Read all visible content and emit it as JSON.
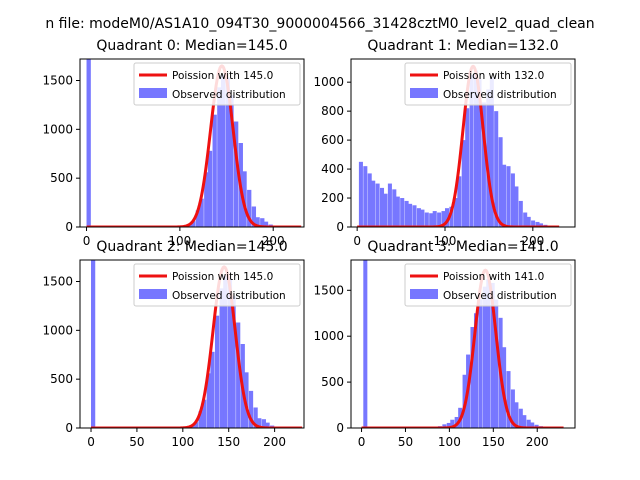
{
  "suptitle": "n file: modeM0/AS1A10_094T30_9000004566_31428cztM0_level2_quad_clean",
  "legend": {
    "observed_label": "Observed distribution",
    "poisson_color": "#ee1111",
    "hist_color": "#7777ff"
  },
  "chart_data": [
    {
      "type": "bar",
      "title": "Quadrant 0: Median=145.0",
      "poisson_label": "Poission with 145.0",
      "lambda": 145,
      "peak": 1650,
      "xlim": [
        -7,
        233
      ],
      "ylim": [
        0,
        1720
      ],
      "xticks": [
        0,
        100,
        200
      ],
      "yticks": [
        0,
        500,
        1000,
        1500
      ],
      "bin_width": 4.6,
      "bins": [
        [
          0,
          1720
        ],
        [
          103,
          10
        ],
        [
          108,
          25
        ],
        [
          112,
          60
        ],
        [
          117,
          170
        ],
        [
          121,
          290
        ],
        [
          126,
          560
        ],
        [
          130,
          780
        ],
        [
          135,
          1150
        ],
        [
          140,
          1430
        ],
        [
          144,
          1560
        ],
        [
          149,
          1530
        ],
        [
          153,
          1350
        ],
        [
          158,
          1080
        ],
        [
          163,
          860
        ],
        [
          167,
          570
        ],
        [
          172,
          380
        ],
        [
          177,
          210
        ],
        [
          181,
          100
        ],
        [
          186,
          90
        ],
        [
          190,
          55
        ],
        [
          195,
          25
        ],
        [
          200,
          12
        ],
        [
          204,
          8
        ],
        [
          209,
          5
        ]
      ]
    },
    {
      "type": "bar",
      "title": "Quadrant 1: Median=132.0",
      "poisson_label": "Poission with 132.0",
      "lambda": 132,
      "peak": 1110,
      "xlim": [
        -7,
        248
      ],
      "ylim": [
        0,
        1160
      ],
      "xticks": [
        0,
        100,
        200
      ],
      "yticks": [
        0,
        200,
        400,
        600,
        800,
        1000
      ],
      "bin_width": 4.6,
      "bins": [
        [
          2,
          450
        ],
        [
          7,
          420
        ],
        [
          12,
          370
        ],
        [
          16,
          320
        ],
        [
          21,
          300
        ],
        [
          26,
          270
        ],
        [
          30,
          230
        ],
        [
          35,
          300
        ],
        [
          40,
          260
        ],
        [
          44,
          210
        ],
        [
          49,
          200
        ],
        [
          54,
          180
        ],
        [
          58,
          160
        ],
        [
          63,
          150
        ],
        [
          68,
          130
        ],
        [
          72,
          120
        ],
        [
          77,
          100
        ],
        [
          82,
          95
        ],
        [
          86,
          110
        ],
        [
          91,
          100
        ],
        [
          96,
          110
        ],
        [
          100,
          130
        ],
        [
          105,
          140
        ],
        [
          110,
          200
        ],
        [
          114,
          350
        ],
        [
          119,
          600
        ],
        [
          123,
          820
        ],
        [
          128,
          1050
        ],
        [
          133,
          1080
        ],
        [
          137,
          1020
        ],
        [
          142,
          860
        ],
        [
          147,
          950
        ],
        [
          151,
          1030
        ],
        [
          156,
          800
        ],
        [
          161,
          620
        ],
        [
          165,
          430
        ],
        [
          170,
          420
        ],
        [
          175,
          370
        ],
        [
          179,
          280
        ],
        [
          184,
          180
        ],
        [
          189,
          100
        ],
        [
          193,
          70
        ],
        [
          198,
          45
        ],
        [
          203,
          35
        ],
        [
          207,
          25
        ],
        [
          212,
          15
        ],
        [
          217,
          10
        ],
        [
          221,
          8
        ]
      ]
    },
    {
      "type": "bar",
      "title": "Quadrant 2: Median=145.0",
      "poisson_label": "Poission with 145.0",
      "lambda": 145,
      "peak": 1650,
      "xlim": [
        -12,
        232
      ],
      "ylim": [
        0,
        1720
      ],
      "xticks": [
        0,
        50,
        100,
        150,
        200
      ],
      "yticks": [
        0,
        500,
        1000,
        1500
      ],
      "bin_width": 4.6,
      "bins": [
        [
          0,
          1720
        ],
        [
          103,
          10
        ],
        [
          108,
          25
        ],
        [
          112,
          60
        ],
        [
          117,
          170
        ],
        [
          121,
          290
        ],
        [
          126,
          560
        ],
        [
          130,
          780
        ],
        [
          135,
          1150
        ],
        [
          140,
          1430
        ],
        [
          144,
          1560
        ],
        [
          149,
          1530
        ],
        [
          153,
          1350
        ],
        [
          158,
          1080
        ],
        [
          163,
          860
        ],
        [
          167,
          570
        ],
        [
          172,
          380
        ],
        [
          177,
          210
        ],
        [
          181,
          100
        ],
        [
          186,
          90
        ],
        [
          190,
          55
        ],
        [
          195,
          25
        ],
        [
          200,
          12
        ],
        [
          204,
          8
        ],
        [
          209,
          5
        ]
      ]
    },
    {
      "type": "bar",
      "title": "Quadrant 3: Median=141.0",
      "poisson_label": "Poission with 141.0",
      "lambda": 141,
      "peak": 1720,
      "xlim": [
        -12,
        243
      ],
      "ylim": [
        0,
        1830
      ],
      "xticks": [
        0,
        50,
        100,
        150,
        200
      ],
      "yticks": [
        0,
        500,
        1000,
        1500
      ],
      "bin_width": 4.6,
      "bins": [
        [
          2,
          1830
        ],
        [
          78,
          10
        ],
        [
          83,
          15
        ],
        [
          87,
          20
        ],
        [
          92,
          40
        ],
        [
          97,
          55
        ],
        [
          101,
          90
        ],
        [
          106,
          120
        ],
        [
          110,
          220
        ],
        [
          115,
          580
        ],
        [
          119,
          800
        ],
        [
          124,
          1100
        ],
        [
          128,
          1250
        ],
        [
          133,
          1400
        ],
        [
          138,
          1540
        ],
        [
          142,
          1620
        ],
        [
          147,
          1580
        ],
        [
          151,
          1400
        ],
        [
          156,
          1200
        ],
        [
          160,
          880
        ],
        [
          165,
          620
        ],
        [
          170,
          420
        ],
        [
          174,
          280
        ],
        [
          179,
          210
        ],
        [
          183,
          140
        ],
        [
          188,
          90
        ],
        [
          192,
          60
        ],
        [
          197,
          35
        ],
        [
          202,
          20
        ],
        [
          206,
          12
        ],
        [
          211,
          6
        ]
      ]
    }
  ]
}
